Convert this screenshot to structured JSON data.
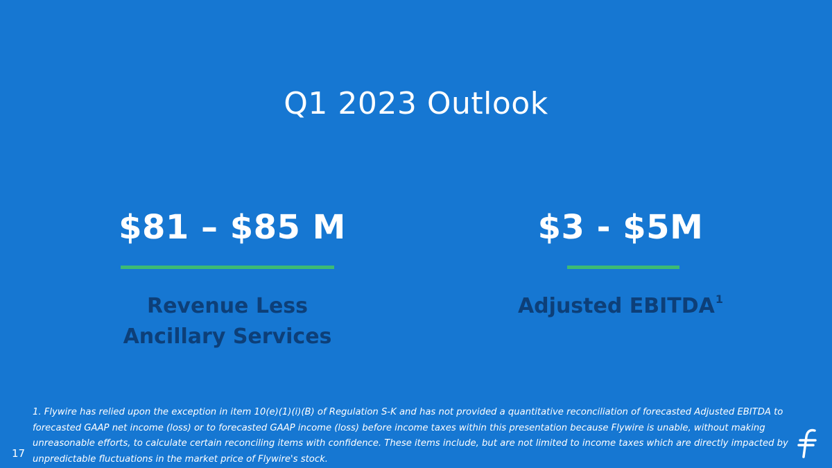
{
  "slide": {
    "title": "Q1 2023 Outlook",
    "page_number": "17"
  },
  "metrics": [
    {
      "value": "$81 – $85 M",
      "label_line1": "Revenue Less",
      "label_line2": "Ancillary Services"
    },
    {
      "value": "$3 - $5M",
      "label": "Adjusted EBITDA",
      "superscript": "1"
    }
  ],
  "footnote": "1. Flywire has relied upon the exception in item 10(e)(1)(i)(B) of Regulation S-K and has not provided a quantitative reconciliation of forecasted Adjusted EBITDA to forecasted GAAP net income (loss) or to forecasted GAAP income (loss) before income taxes within this presentation because Flywire is unable, without making unreasonable efforts, to calculate certain reconciling items with confidence. These items include, but are not limited to income taxes which are directly impacted by unpredictable fluctuations in the market price of Flywire's stock.",
  "colors": {
    "background": "#1677d2",
    "accent": "#3dbb74",
    "label": "#0d3f78",
    "text": "#ffffff"
  },
  "logo": {
    "icon": "flywire-logo-icon"
  }
}
